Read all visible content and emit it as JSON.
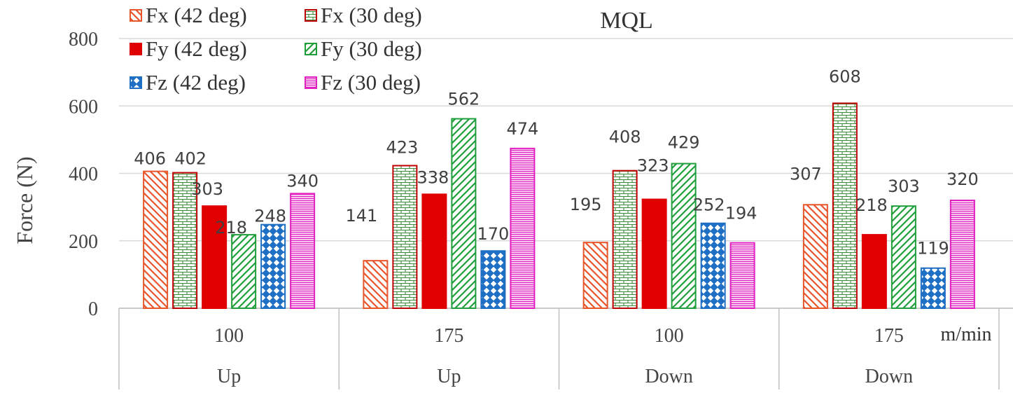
{
  "chart_data": {
    "type": "bar",
    "title": "MQL",
    "ylabel": "Force (N)",
    "ylim": [
      0,
      800
    ],
    "yticks": [
      0,
      200,
      400,
      600,
      800
    ],
    "grid": true,
    "legend_position": "top-left",
    "unit_label": "m/min",
    "categories": [
      {
        "speed": "100",
        "direction": "Up"
      },
      {
        "speed": "175",
        "direction": "Up"
      },
      {
        "speed": "100",
        "direction": "Down"
      },
      {
        "speed": "175",
        "direction": "Down"
      }
    ],
    "series": [
      {
        "name": "Fx (42 deg)",
        "values": [
          406,
          141,
          195,
          307
        ],
        "color": "#e8552a",
        "pattern": "diag-down"
      },
      {
        "name": "Fx (30 deg)",
        "values": [
          402,
          423,
          408,
          608
        ],
        "color": "#c00000",
        "pattern": "brick"
      },
      {
        "name": "Fy (42 deg)",
        "values": [
          303,
          338,
          323,
          218
        ],
        "color": "#e00000",
        "pattern": "solid"
      },
      {
        "name": "Fy (30 deg)",
        "values": [
          218,
          562,
          429,
          303
        ],
        "color": "#1f9e3a",
        "pattern": "diag-up"
      },
      {
        "name": "Fz (42 deg)",
        "values": [
          248,
          170,
          252,
          119
        ],
        "color": "#1f6fc4",
        "pattern": "checker"
      },
      {
        "name": "Fz (30 deg)",
        "values": [
          340,
          474,
          194,
          320
        ],
        "color": "#e020c0",
        "pattern": "horizontal"
      }
    ]
  }
}
